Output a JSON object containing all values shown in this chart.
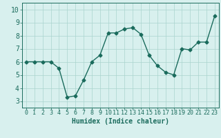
{
  "x": [
    0,
    1,
    2,
    3,
    4,
    5,
    6,
    7,
    8,
    9,
    10,
    11,
    12,
    13,
    14,
    15,
    16,
    17,
    18,
    19,
    20,
    21,
    22,
    23
  ],
  "y": [
    6.0,
    6.0,
    6.0,
    6.0,
    5.5,
    3.3,
    3.4,
    4.6,
    6.0,
    6.5,
    8.2,
    8.2,
    8.5,
    8.6,
    8.1,
    6.5,
    5.7,
    5.2,
    5.0,
    7.0,
    6.9,
    7.5,
    7.5,
    9.5
  ],
  "line_color": "#1a6b5c",
  "marker": "D",
  "markersize": 2.5,
  "linewidth": 1.0,
  "bg_color": "#d8f0ee",
  "grid_color": "#aad4ce",
  "xlabel": "Humidex (Indice chaleur)",
  "xlabel_fontsize": 7,
  "tick_fontsize": 6,
  "xlim": [
    -0.5,
    23.5
  ],
  "ylim": [
    2.5,
    10.5
  ],
  "yticks": [
    3,
    4,
    5,
    6,
    7,
    8,
    9,
    10
  ],
  "xticks": [
    0,
    1,
    2,
    3,
    4,
    5,
    6,
    7,
    8,
    9,
    10,
    11,
    12,
    13,
    14,
    15,
    16,
    17,
    18,
    19,
    20,
    21,
    22,
    23
  ]
}
